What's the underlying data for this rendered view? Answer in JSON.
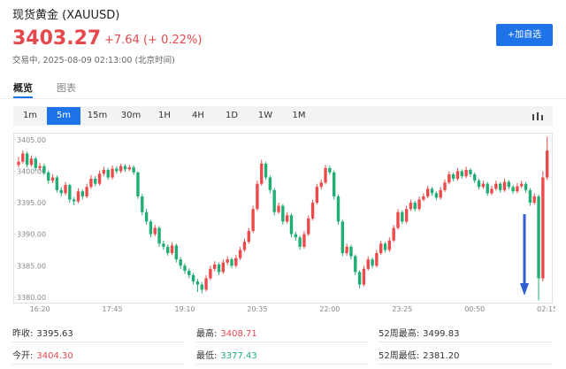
{
  "header": {
    "title": "现货黄金 (XAUUSD)",
    "price": "3403.27",
    "change": "+7.64 (+ 0.22%)",
    "status": "交易中, 2025-08-09 02:13:00 (北京时间)",
    "button": "+加自选"
  },
  "tabs": [
    "概览",
    "图表"
  ],
  "intervals": [
    "1m",
    "5m",
    "15m",
    "30m",
    "1H",
    "4H",
    "1D",
    "1W",
    "1M"
  ],
  "chart_data": {
    "type": "candlestick",
    "up_color": "#ec4b4b",
    "down_color": "#21ae74",
    "categories": [
      null,
      null,
      null,
      null,
      null,
      "16:20",
      null,
      null,
      null,
      null,
      null,
      null,
      null,
      null,
      null,
      null,
      null,
      null,
      null,
      null,
      null,
      null,
      "17:45",
      null,
      null,
      null,
      null,
      null,
      null,
      null,
      null,
      null,
      null,
      null,
      null,
      null,
      null,
      null,
      null,
      "19:10",
      null,
      null,
      null,
      null,
      null,
      null,
      null,
      null,
      null,
      null,
      null,
      null,
      null,
      null,
      null,
      null,
      "20:35",
      null,
      null,
      null,
      null,
      null,
      null,
      null,
      null,
      null,
      null,
      null,
      null,
      null,
      null,
      null,
      null,
      "22:00",
      null,
      null,
      null,
      null,
      null,
      null,
      null,
      null,
      null,
      null,
      null,
      null,
      null,
      null,
      null,
      null,
      "23:25",
      null,
      null,
      null,
      null,
      null,
      null,
      null,
      null,
      null,
      null,
      null,
      null,
      null,
      null,
      null,
      null,
      "00:50",
      null,
      null,
      null,
      null,
      null,
      null,
      null,
      null,
      null,
      null,
      null,
      null,
      null,
      null,
      null,
      null,
      "02:15"
    ],
    "open": [
      3401.0,
      3401.5,
      3402.8,
      3401.0,
      3402.0,
      3400.5,
      3400.8,
      3399.8,
      3398.5,
      3399.0,
      3397.0,
      3396.5,
      3397.8,
      3395.5,
      3395.2,
      3396.8,
      3396.0,
      3397.5,
      3398.8,
      3398.0,
      3399.6,
      3400.2,
      3399.0,
      3400.4,
      3400.0,
      3400.8,
      3400.3,
      3400.6,
      3399.8,
      3396.0,
      3393.5,
      3392.0,
      3390.0,
      3391.0,
      3388.5,
      3388.0,
      3387.0,
      3388.2,
      3386.0,
      3385.0,
      3384.2,
      3383.5,
      3382.5,
      3382.0,
      3381.2,
      3383.0,
      3384.5,
      3385.2,
      3384.0,
      3385.5,
      3386.0,
      3385.0,
      3386.2,
      3387.5,
      3388.8,
      3390.5,
      3394.0,
      3398.0,
      3401.2,
      3399.0,
      3397.0,
      3393.5,
      3394.5,
      3392.0,
      3393.0,
      3390.0,
      3389.5,
      3388.0,
      3390.0,
      3392.5,
      3395.0,
      3397.5,
      3398.2,
      3400.5,
      3399.8,
      3396.0,
      3392.0,
      3387.0,
      3388.0,
      3386.5,
      3384.0,
      3382.0,
      3384.5,
      3386.0,
      3385.0,
      3387.0,
      3388.5,
      3387.5,
      3389.0,
      3391.0,
      3393.5,
      3392.0,
      3394.0,
      3395.0,
      3394.0,
      3395.5,
      3396.0,
      3397.2,
      3396.5,
      3395.8,
      3397.0,
      3398.2,
      3399.5,
      3398.8,
      3400.0,
      3399.2,
      3400.2,
      3399.5,
      3398.5,
      3397.5,
      3398.0,
      3396.5,
      3397.2,
      3398.0,
      3397.0,
      3398.3,
      3397.5,
      3396.8,
      3397.6,
      3398.0,
      3397.0,
      3395.0,
      3396.0,
      3383.0,
      3399.0
    ],
    "high": [
      3402.3,
      3403.3,
      3403.1,
      3402.5,
      3402.3,
      3401.3,
      3401.2,
      3400.1,
      3399.5,
      3399.3,
      3397.5,
      3398.3,
      3398.0,
      3395.9,
      3397.3,
      3397.1,
      3398.0,
      3399.4,
      3399.2,
      3400.1,
      3400.7,
      3400.5,
      3400.9,
      3400.8,
      3401.2,
      3401.1,
      3401.0,
      3400.9,
      3400.0,
      3396.4,
      3394.0,
      3392.3,
      3391.5,
      3391.3,
      3389.0,
      3388.4,
      3388.7,
      3388.5,
      3386.4,
      3385.4,
      3384.6,
      3383.9,
      3382.9,
      3382.4,
      3383.5,
      3385.0,
      3385.7,
      3385.5,
      3386.0,
      3386.5,
      3386.3,
      3386.7,
      3388.0,
      3389.3,
      3391.0,
      3394.5,
      3398.5,
      3401.8,
      3401.5,
      3399.3,
      3397.3,
      3395.0,
      3394.8,
      3393.5,
      3393.3,
      3390.4,
      3389.8,
      3390.5,
      3393.0,
      3395.5,
      3398.0,
      3398.7,
      3401.0,
      3400.9,
      3400.1,
      3396.3,
      3392.3,
      3388.5,
      3388.3,
      3386.8,
      3384.3,
      3385.0,
      3386.5,
      3386.3,
      3387.5,
      3389.0,
      3388.8,
      3389.5,
      3391.5,
      3394.0,
      3393.8,
      3394.5,
      3395.5,
      3395.3,
      3396.0,
      3396.5,
      3397.7,
      3397.5,
      3396.8,
      3397.5,
      3398.7,
      3400.0,
      3399.8,
      3400.5,
      3400.3,
      3400.7,
      3400.5,
      3399.8,
      3398.8,
      3398.5,
      3398.3,
      3397.7,
      3398.5,
      3398.3,
      3398.8,
      3398.6,
      3397.8,
      3398.1,
      3398.5,
      3398.3,
      3397.3,
      3396.5,
      3396.3,
      3400.0,
      3405.5
    ],
    "low": [
      3400.6,
      3401.2,
      3400.6,
      3400.7,
      3400.0,
      3400.1,
      3399.4,
      3398.0,
      3398.1,
      3396.6,
      3396.0,
      3396.2,
      3395.0,
      3394.6,
      3394.9,
      3395.5,
      3395.7,
      3397.2,
      3397.6,
      3397.7,
      3399.2,
      3398.6,
      3398.7,
      3399.6,
      3399.7,
      3399.9,
      3400.0,
      3399.4,
      3395.6,
      3393.0,
      3391.5,
      3389.5,
      3389.7,
      3388.0,
      3387.5,
      3386.6,
      3386.7,
      3385.5,
      3384.5,
      3383.7,
      3383.0,
      3382.0,
      3380.8,
      3380.6,
      3380.9,
      3382.7,
      3384.1,
      3383.5,
      3383.7,
      3385.1,
      3384.6,
      3384.7,
      3385.9,
      3387.2,
      3388.5,
      3390.2,
      3393.7,
      3397.7,
      3398.6,
      3396.5,
      3393.0,
      3393.2,
      3391.5,
      3391.7,
      3389.5,
      3389.0,
      3387.5,
      3387.7,
      3389.7,
      3392.2,
      3394.7,
      3397.1,
      3397.9,
      3399.4,
      3395.5,
      3391.5,
      3386.5,
      3386.6,
      3386.0,
      3383.5,
      3381.4,
      3381.7,
      3384.2,
      3384.6,
      3384.7,
      3386.7,
      3387.1,
      3387.2,
      3388.7,
      3390.7,
      3391.6,
      3391.7,
      3393.7,
      3393.6,
      3393.7,
      3395.2,
      3395.7,
      3396.1,
      3395.4,
      3395.5,
      3396.7,
      3397.9,
      3398.4,
      3398.5,
      3398.8,
      3398.9,
      3399.1,
      3398.1,
      3397.1,
      3397.2,
      3396.1,
      3396.2,
      3396.9,
      3396.6,
      3396.7,
      3397.1,
      3396.4,
      3396.5,
      3397.3,
      3396.6,
      3394.5,
      3394.7,
      3379.5,
      3382.5,
      3398.6
    ],
    "close": [
      3401.5,
      3402.8,
      3401.0,
      3402.0,
      3400.5,
      3400.8,
      3399.8,
      3398.5,
      3399.0,
      3397.0,
      3396.5,
      3397.8,
      3395.5,
      3395.2,
      3396.8,
      3396.0,
      3397.5,
      3398.8,
      3398.0,
      3399.6,
      3400.2,
      3399.0,
      3400.4,
      3400.0,
      3400.8,
      3400.3,
      3400.6,
      3399.8,
      3396.0,
      3393.5,
      3392.0,
      3390.0,
      3391.0,
      3388.5,
      3388.0,
      3387.0,
      3388.2,
      3386.0,
      3385.0,
      3384.2,
      3383.5,
      3382.5,
      3382.0,
      3381.2,
      3383.0,
      3384.5,
      3385.2,
      3384.0,
      3385.5,
      3386.0,
      3385.0,
      3386.2,
      3387.5,
      3388.8,
      3390.5,
      3394.0,
      3398.0,
      3401.2,
      3399.0,
      3397.0,
      3393.5,
      3394.5,
      3392.0,
      3393.0,
      3390.0,
      3389.5,
      3388.0,
      3390.0,
      3392.5,
      3395.0,
      3397.5,
      3398.2,
      3400.5,
      3399.8,
      3396.0,
      3392.0,
      3387.0,
      3388.0,
      3386.5,
      3384.0,
      3382.0,
      3384.5,
      3386.0,
      3385.0,
      3387.0,
      3388.5,
      3387.5,
      3389.0,
      3391.0,
      3393.5,
      3392.0,
      3394.0,
      3395.0,
      3394.0,
      3395.5,
      3396.0,
      3397.2,
      3396.5,
      3395.8,
      3397.0,
      3398.2,
      3399.5,
      3398.8,
      3400.0,
      3399.2,
      3400.2,
      3399.5,
      3398.5,
      3397.5,
      3398.0,
      3396.5,
      3397.2,
      3398.0,
      3397.0,
      3398.3,
      3397.5,
      3396.8,
      3397.6,
      3398.0,
      3397.0,
      3395.0,
      3396.0,
      3383.0,
      3399.0,
      3403.27
    ],
    "ylim": [
      3379.0,
      3406.1
    ],
    "yticks": [
      {
        "value": 3380,
        "label": "3380.00"
      },
      {
        "value": 3385,
        "label": "3385.00"
      },
      {
        "value": 3390,
        "label": "3390.00"
      },
      {
        "value": 3395,
        "label": "3395.00"
      },
      {
        "value": 3400,
        "label": "3400.00"
      },
      {
        "value": 3405,
        "label": "3405.00"
      }
    ]
  },
  "stats": [
    {
      "label": "昨收:",
      "value": "3395.63"
    },
    {
      "label": "最高:",
      "value": "3408.71"
    },
    {
      "label": "52周最高:",
      "value": "3499.83"
    },
    {
      "label": "今开:",
      "value": "3404.30"
    },
    {
      "label": "最低:",
      "value": "3377.43"
    },
    {
      "label": "52周最低:",
      "value": "2381.20"
    }
  ]
}
